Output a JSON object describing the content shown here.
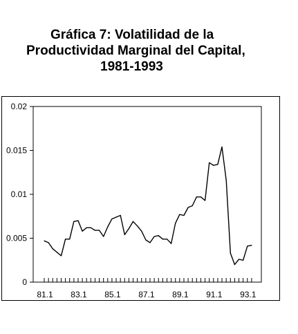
{
  "title": {
    "line1": "Gráfica 7: Volatilidad de la",
    "line2": "Productividad Marginal del Capital,",
    "line3": "1981-1993"
  },
  "chart_data": {
    "type": "line",
    "title": "Gráfica 7: Volatilidad de la Productividad Marginal del Capital, 1981-1993",
    "xlabel": "",
    "ylabel": "",
    "ylim": [
      0,
      0.02
    ],
    "yticks": [
      "0",
      "0.005",
      "0.01",
      "0.015",
      "0.02"
    ],
    "xticks": [
      "81.1",
      "83.1",
      "85.1",
      "87.1",
      "89.1",
      "91.1",
      "93.1"
    ],
    "x_start": "81.1",
    "frequency": "quarterly",
    "series": [
      {
        "name": "",
        "values": [
          0.0047,
          0.0045,
          0.0038,
          0.0034,
          0.003,
          0.0049,
          0.0049,
          0.0069,
          0.007,
          0.0058,
          0.0062,
          0.0062,
          0.0059,
          0.0059,
          0.0052,
          0.0063,
          0.0072,
          0.0074,
          0.0076,
          0.0054,
          0.0061,
          0.0069,
          0.0064,
          0.0058,
          0.0048,
          0.0045,
          0.0052,
          0.0053,
          0.0049,
          0.0049,
          0.0044,
          0.0067,
          0.0077,
          0.0076,
          0.0085,
          0.0087,
          0.0097,
          0.0097,
          0.0093,
          0.0136,
          0.0133,
          0.0134,
          0.0154,
          0.0116,
          0.0033,
          0.002,
          0.0026,
          0.0025,
          0.0041,
          0.0042
        ]
      }
    ],
    "grid": false,
    "legend": "none"
  }
}
